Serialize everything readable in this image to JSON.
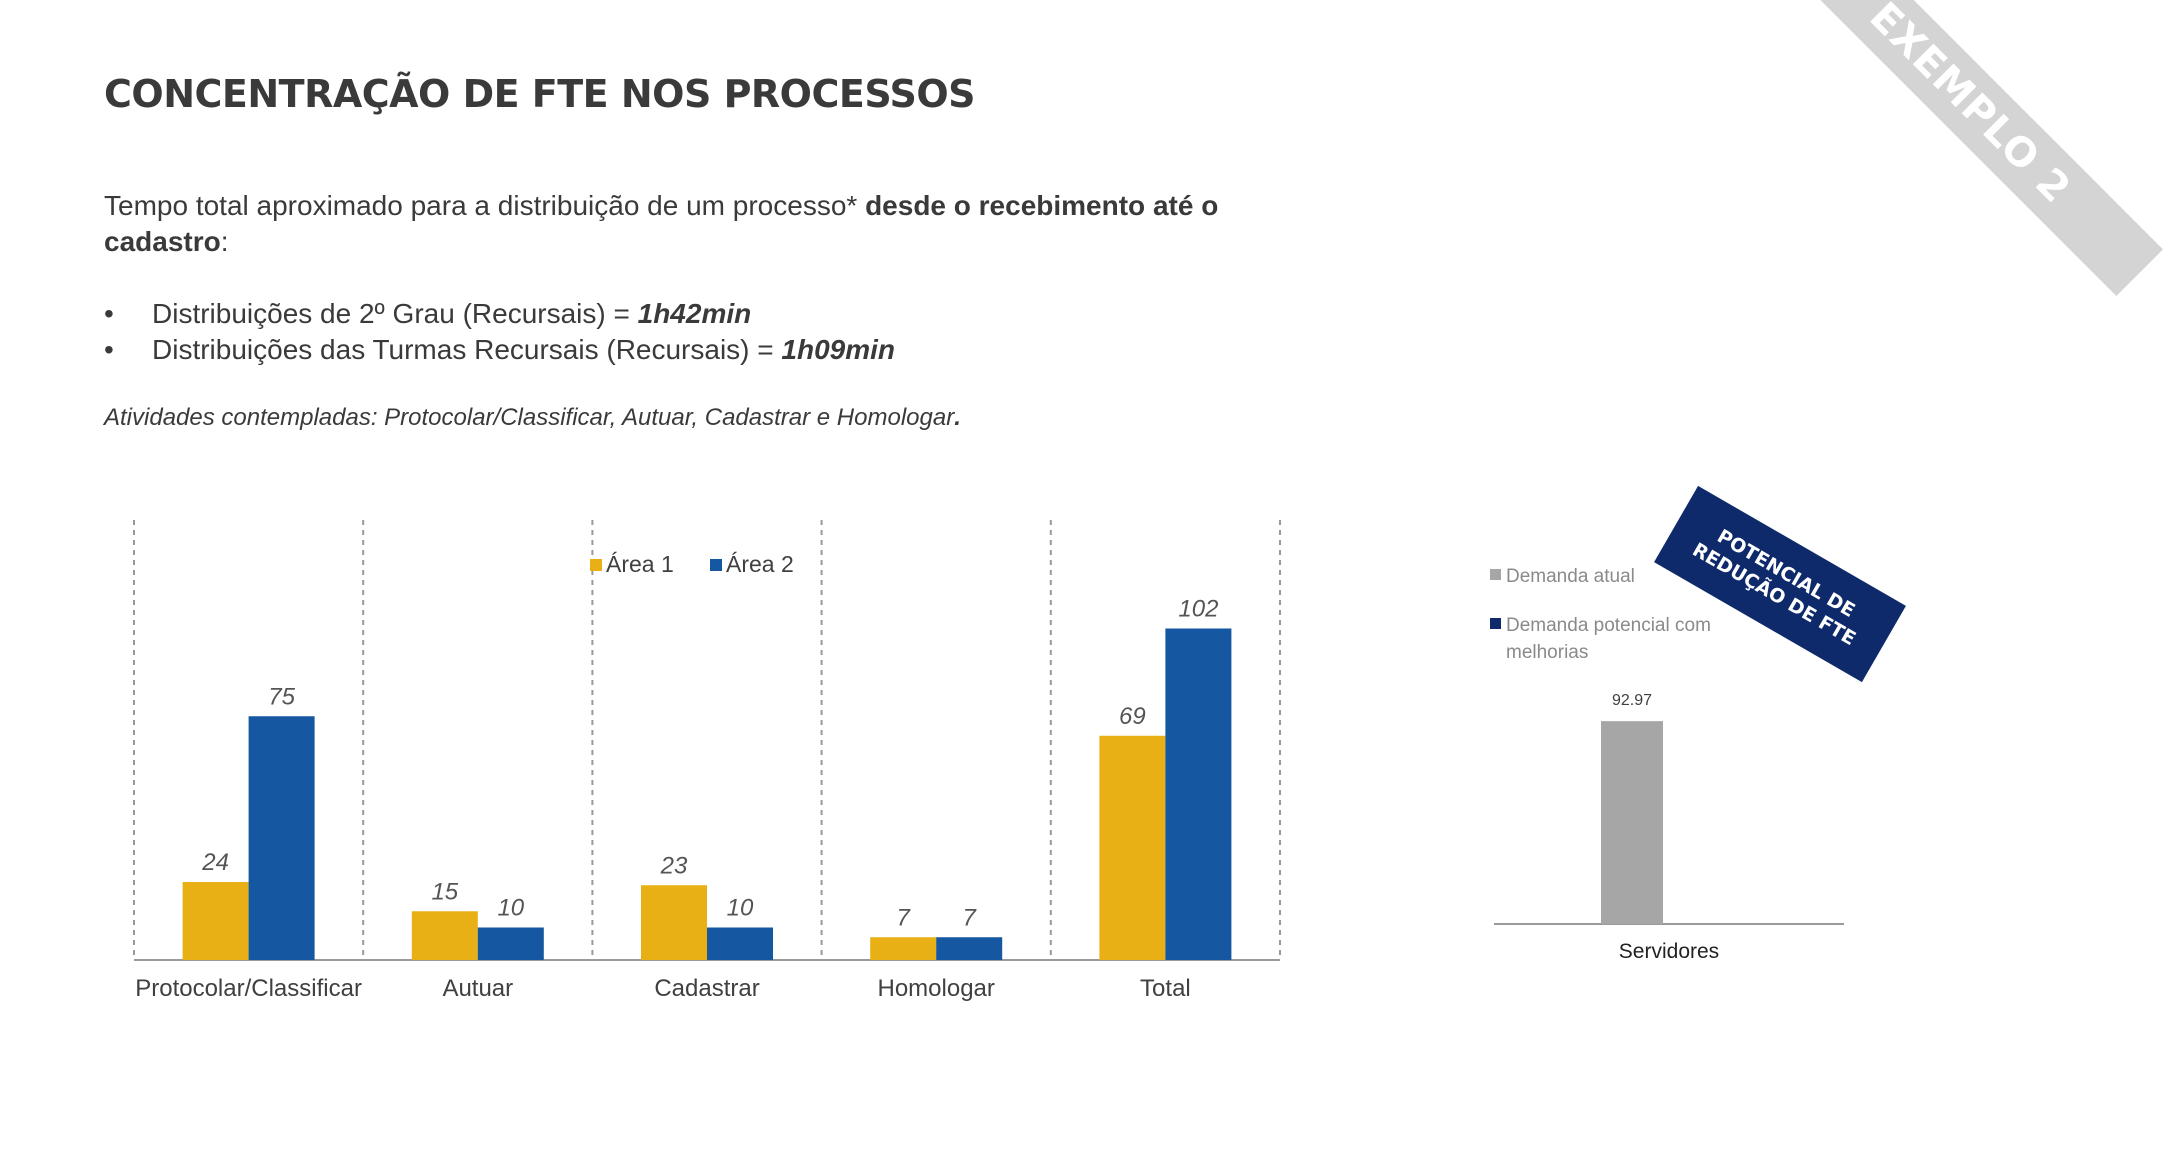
{
  "slide": {
    "title": "CONCENTRAÇÃO DE FTE NOS PROCESSOS",
    "intro_regular": "Tempo total aproximado para a distribuição de um processo* ",
    "intro_bold": "desde o recebimento até o cadastro",
    "intro_end": ":",
    "bullet_symbol": "•",
    "bullets": [
      {
        "text": "Distribuições de 2º Grau (Recursais) = ",
        "value": "1h42min"
      },
      {
        "text": "Distribuições das Turmas Recursais (Recursais) = ",
        "value": "1h09min"
      }
    ],
    "note_text": "Atividades contempladas: Protocolar/Classificar, Autuar, Cadastrar e Homologar",
    "note_end": ".",
    "ribbon_label": "EXEMPLO 2",
    "stamp_line1": "POTENCIAL DE",
    "stamp_line2": "REDUÇÃO DE FTE"
  },
  "chart_data": [
    {
      "type": "bar",
      "categories": [
        "Protocolar/Classificar",
        "Autuar",
        "Cadastrar",
        "Homologar",
        "Total"
      ],
      "series": [
        {
          "name": "Área 1",
          "color": "#e8b015",
          "values": [
            24,
            15,
            23,
            7,
            69
          ]
        },
        {
          "name": "Área 2",
          "color": "#1557a0",
          "values": [
            75,
            10,
            10,
            7,
            102
          ]
        }
      ],
      "ylim": [
        0,
        120
      ],
      "legend": "top-center",
      "data_labels": true,
      "grid": false
    },
    {
      "type": "bar",
      "categories": [
        "Servidores"
      ],
      "series": [
        {
          "name": "Demanda atual",
          "color": "#a6a6a6",
          "values": [
            92.97
          ]
        },
        {
          "name": "Demanda potencial com melhorias",
          "color": "#0e2a6b",
          "values": [
            null
          ]
        }
      ],
      "ylim": [
        0,
        110
      ],
      "legend": "top-left",
      "data_labels": true
    }
  ]
}
